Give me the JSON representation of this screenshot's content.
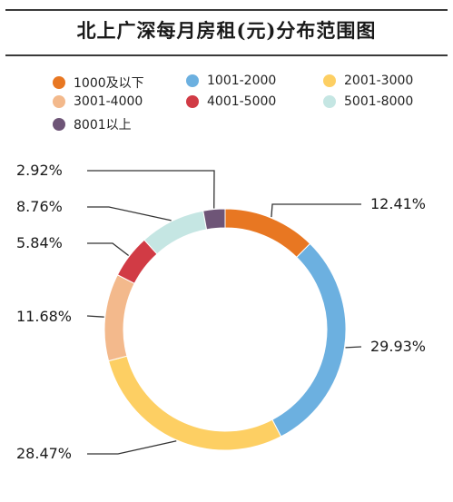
{
  "title": "北上广深每月房租(元)分布范围图",
  "chart_data": {
    "type": "pie",
    "donut": true,
    "legend_position": "top",
    "categories": [
      "1000及以下",
      "1001-2000",
      "2001-3000",
      "3001-4000",
      "4001-5000",
      "5001-8000",
      "8001以上"
    ],
    "values": [
      12.41,
      29.93,
      28.47,
      11.68,
      5.84,
      8.76,
      2.92
    ],
    "data_labels": [
      "12.41%",
      "29.93%",
      "28.47%",
      "11.68%",
      "5.84%",
      "8.76%",
      "2.92%"
    ],
    "colors": [
      "#E87722",
      "#6CB0E0",
      "#FDCF63",
      "#F3B98C",
      "#D13B45",
      "#C5E6E3",
      "#6E5577"
    ],
    "start_angle_deg": 0,
    "direction": "clockwise"
  }
}
